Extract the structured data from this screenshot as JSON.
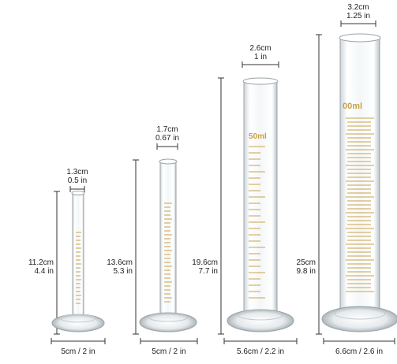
{
  "cylinders": [
    {
      "id": "10ml",
      "top_dim": {
        "cm": "1.3cm",
        "in": "0.5 in"
      },
      "height_dim": {
        "cm": "11.2cm",
        "in": "4.4 in"
      },
      "base_dim": "5cm / 2 in"
    },
    {
      "id": "25ml",
      "top_dim": {
        "cm": "1.7cm",
        "in": "0.67 in"
      },
      "height_dim": {
        "cm": "13.6cm",
        "in": "5.3 in"
      },
      "base_dim": "5cm / 2 in"
    },
    {
      "id": "50ml",
      "top_dim": {
        "cm": "2.6cm",
        "in": "1 in"
      },
      "height_dim": {
        "cm": "19.6cm",
        "in": "7.7 in"
      },
      "base_dim": "5.6cm / 2.2 in",
      "volume_mark": "50ml"
    },
    {
      "id": "100ml",
      "top_dim": {
        "cm": "3.2cm",
        "in": "1.25 in"
      },
      "height_dim": {
        "cm": "25cm",
        "in": "9.8 in"
      },
      "base_dim": "6.6cm / 2.6 in",
      "volume_mark": "00ml"
    }
  ],
  "colors": {
    "graduation": "#c9a14a",
    "glass_edge": "#9aa3a8",
    "dimension_line": "#333333"
  }
}
